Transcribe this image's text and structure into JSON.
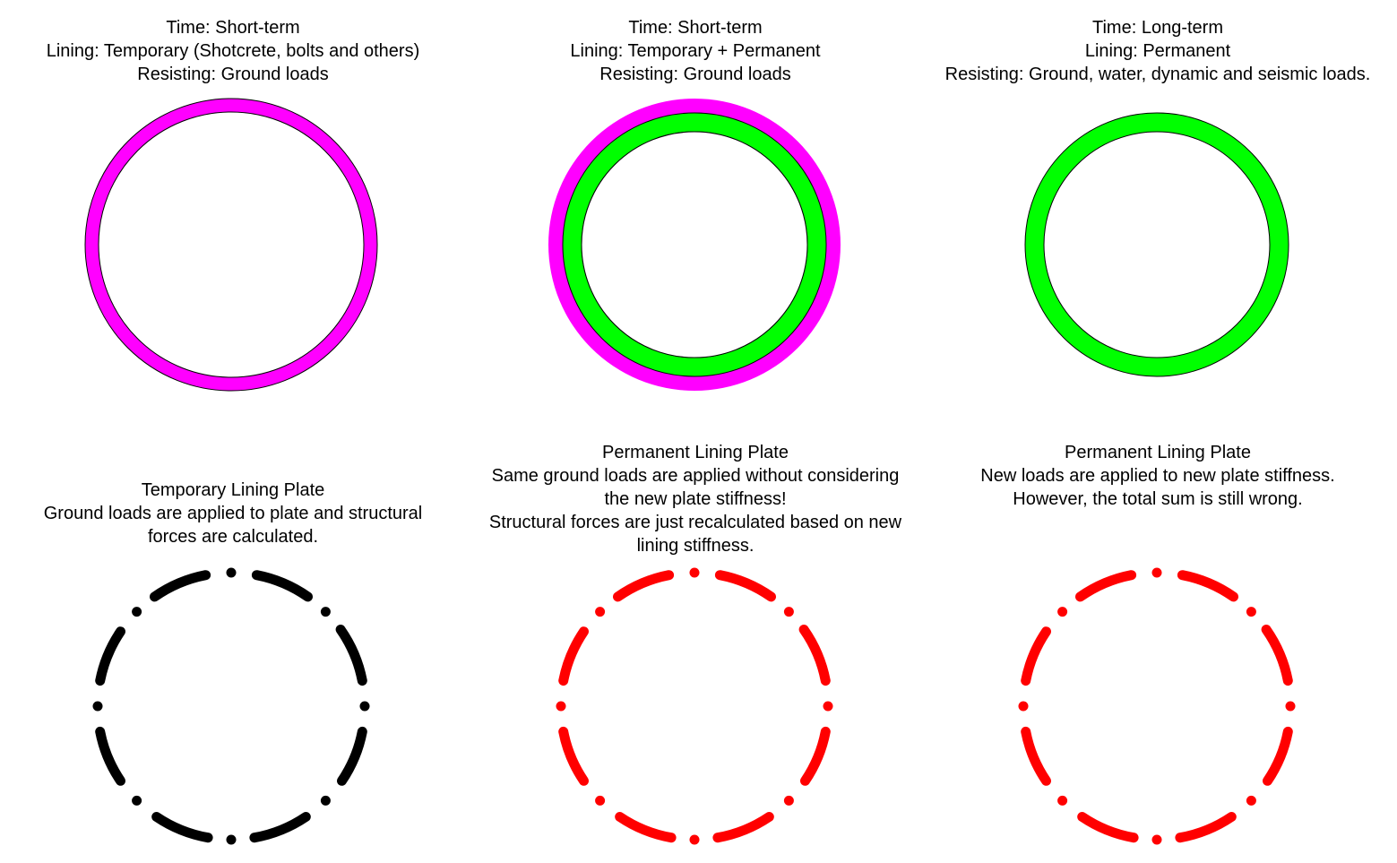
{
  "diagram": {
    "stages": [
      {
        "caption": [
          "Time: Short-term",
          "Lining: Temporary (Shotcrete, bolts and others)",
          "Resisting: Ground loads"
        ],
        "rings": [
          {
            "color": "#ff00ff",
            "label": "Temporary lining"
          }
        ]
      },
      {
        "caption": [
          "Time: Short-term",
          "Lining: Temporary + Permanent",
          "Resisting: Ground loads"
        ],
        "rings": [
          {
            "color": "#ff00ff",
            "label": "Temporary lining"
          },
          {
            "color": "#00ff00",
            "label": "Permanent lining"
          }
        ]
      },
      {
        "caption": [
          "Time: Long-term",
          "Lining: Permanent",
          "Resisting: Ground, water, dynamic and seismic loads."
        ],
        "rings": [
          {
            "color": "#00ff00",
            "label": "Permanent lining"
          }
        ]
      }
    ],
    "plates": [
      {
        "caption": [
          "Temporary Lining Plate",
          "Ground loads are applied to plate and structural",
          "forces are calculated."
        ],
        "color": "#000000"
      },
      {
        "caption": [
          "Permanent Lining Plate",
          "Same ground loads are applied without considering",
          "the new plate stiffness!",
          "Structural forces are just recalculated based on new",
          "lining stiffness."
        ],
        "color": "#ff0000"
      },
      {
        "caption": [
          "Permanent Lining Plate",
          "New loads are applied to new plate stiffness.",
          "However, the total sum is still wrong."
        ],
        "color": "#ff0000"
      }
    ]
  }
}
